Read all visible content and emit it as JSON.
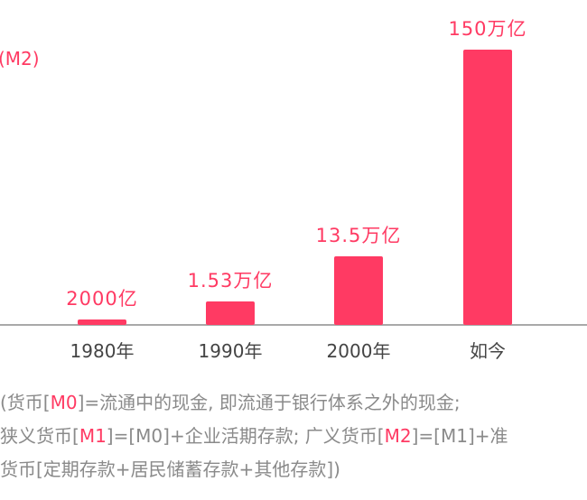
{
  "chart_data": {
    "type": "bar",
    "categories": [
      "1980年",
      "1990年",
      "2000年",
      "如今"
    ],
    "values": [
      0.2,
      1.53,
      13.5,
      150
    ],
    "value_labels": [
      "2000亿",
      "1.53万亿",
      "13.5万亿",
      "150万亿"
    ],
    "unit_label": "(M2)",
    "bar_color": "#ff3a63"
  },
  "notes": {
    "line1": {
      "prefix": "(货币[",
      "hl": "M0",
      "suffix": "]=流通中的现金, 即流通于银行体系之外的现金;"
    },
    "line2": {
      "prefix": "狭义货币[",
      "hl1": "M1",
      "mid": "]=[M0]+企业活期存款; 广义货币[",
      "hl2": "M2",
      "suffix": "]=[M1]+准"
    },
    "line3": {
      "text": "货币[定期存款+居民储蓄存款+其他存款])"
    }
  }
}
